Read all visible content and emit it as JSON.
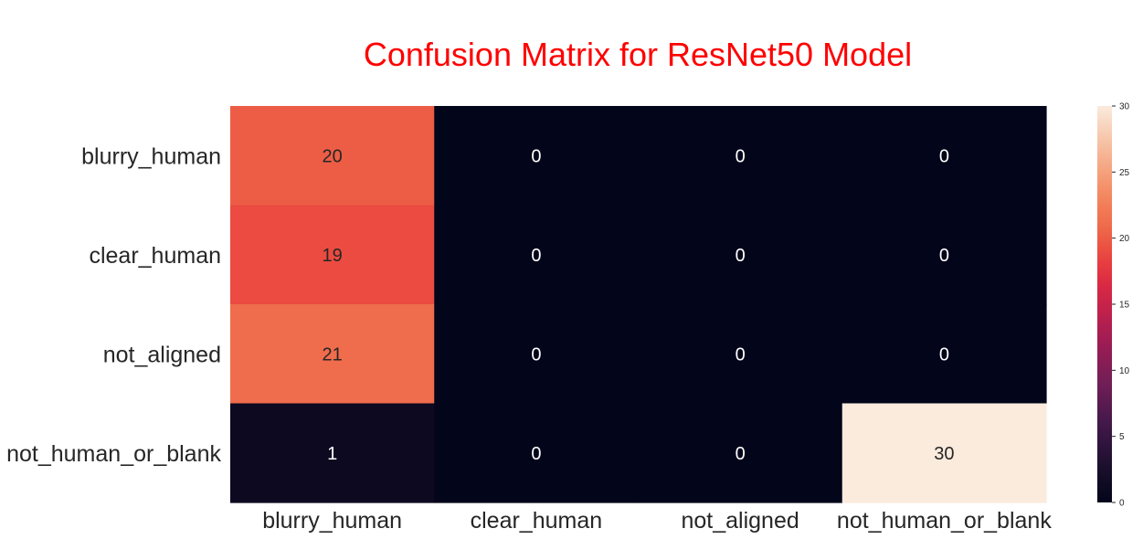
{
  "chart_data": {
    "type": "heatmap",
    "title": "Confusion Matrix for ResNet50 Model",
    "title_color": "#ff0000",
    "rows": [
      "blurry_human",
      "clear_human",
      "not_aligned",
      "not_human_or_blank"
    ],
    "columns": [
      "blurry_human",
      "clear_human",
      "not_aligned",
      "not_human_or_blank"
    ],
    "values": [
      [
        20,
        0,
        0,
        0
      ],
      [
        19,
        0,
        0,
        0
      ],
      [
        21,
        0,
        0,
        0
      ],
      [
        1,
        0,
        0,
        30
      ]
    ],
    "colormap": "rocket",
    "colorbar": {
      "min": 0,
      "max": 30,
      "ticks": [
        0,
        5,
        10,
        15,
        20,
        25,
        30
      ]
    },
    "annotated": true,
    "grid": false
  }
}
